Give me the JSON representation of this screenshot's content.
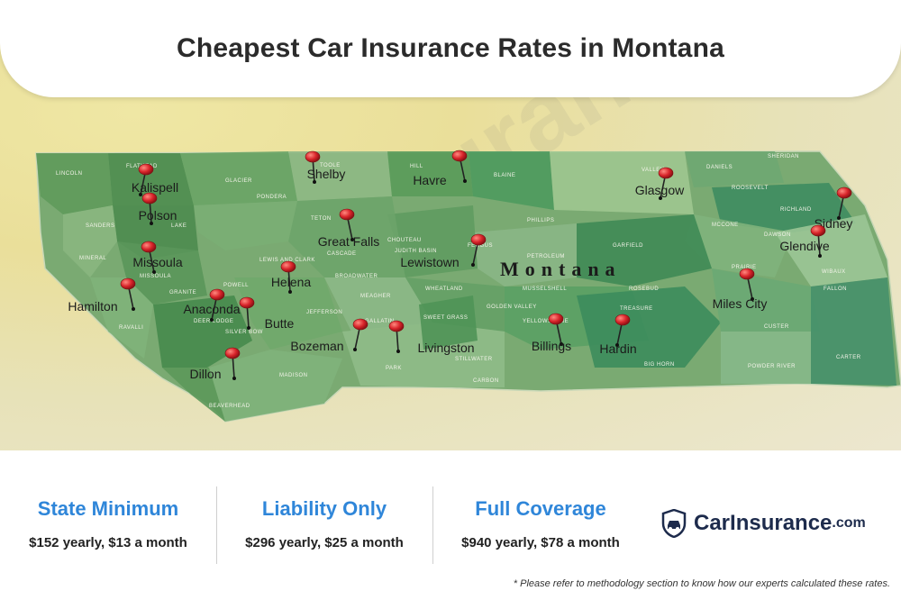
{
  "title": "Cheapest Car Insurance Rates in Montana",
  "map": {
    "state_label": "Montana",
    "cities": [
      {
        "name": "Kalispell"
      },
      {
        "name": "Shelby"
      },
      {
        "name": "Havre"
      },
      {
        "name": "Glasgow"
      },
      {
        "name": "Polson"
      },
      {
        "name": "Great Falls"
      },
      {
        "name": "Sidney"
      },
      {
        "name": "Glendive"
      },
      {
        "name": "Missoula"
      },
      {
        "name": "Lewistown"
      },
      {
        "name": "Helena"
      },
      {
        "name": "Hamilton"
      },
      {
        "name": "Anaconda"
      },
      {
        "name": "Butte"
      },
      {
        "name": "Miles City"
      },
      {
        "name": "Bozeman"
      },
      {
        "name": "Livingston"
      },
      {
        "name": "Billings"
      },
      {
        "name": "Hardin"
      },
      {
        "name": "Dillon"
      }
    ],
    "counties": [
      "LINCOLN",
      "FLATHEAD",
      "GLACIER",
      "TOOLE",
      "HILL",
      "BLAINE",
      "VALLEY",
      "DANIELS",
      "SHERIDAN",
      "PONDERA",
      "ROOSEVELT",
      "SANDERS",
      "LAKE",
      "TETON",
      "PHILLIPS",
      "RICHLAND",
      "MCCONE",
      "DAWSON",
      "CHOUTEAU",
      "FERGUS",
      "GARFIELD",
      "CASCADE",
      "JUDITH BASIN",
      "PETROLEUM",
      "MINERAL",
      "MISSOULA",
      "LEWIS AND CLARK",
      "POWELL",
      "PRAIRIE",
      "WIBAUX",
      "GRANITE",
      "MEAGHER",
      "WHEATLAND",
      "MUSSELSHELL",
      "ROSEBUD",
      "FALLON",
      "RAVALLI",
      "DEER LODGE",
      "SILVER BOW",
      "JEFFERSON",
      "GALLATIN",
      "SWEET GRASS",
      "GOLDEN VALLEY",
      "YELLOWSTONE",
      "TREASURE",
      "CUSTER",
      "MADISON",
      "PARK",
      "STILLWATER",
      "BIG HORN",
      "CARBON",
      "POWDER RIVER",
      "CARTER",
      "BEAVERHEAD",
      "BROADWATER"
    ]
  },
  "watermark": "CarInsurance.com",
  "rates": [
    {
      "label": "State Minimum",
      "value": "$152 yearly, $13 a month"
    },
    {
      "label": "Liability Only",
      "value": "$296 yearly, $25 a month"
    },
    {
      "label": "Full Coverage",
      "value": "$940 yearly, $78 a month"
    }
  ],
  "brand": {
    "name": "CarInsurance",
    "suffix": ".com",
    "icon": "car-shield-icon"
  },
  "footnote": "* Please refer to methodology section to know how our experts calculated these rates.",
  "colors": {
    "accent": "#2f86d9",
    "brand": "#1d2b4c",
    "pin": "#d8242a",
    "map_green": "#5f9a5b"
  }
}
